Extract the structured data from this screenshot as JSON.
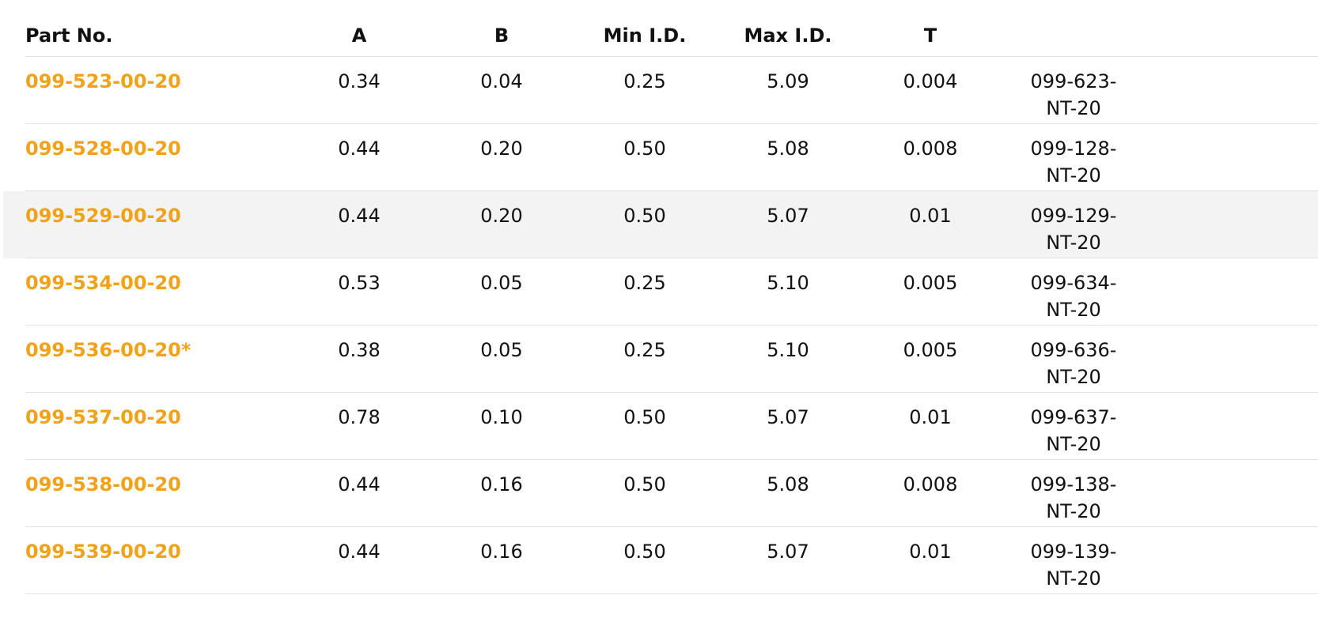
{
  "table": {
    "headers": [
      "Part No.",
      "A",
      "B",
      "Min I.D.",
      "Max I.D.",
      "T",
      ""
    ],
    "link_color": "#f0a31a",
    "highlight_color": "#f3f3f3",
    "rows": [
      {
        "part": "099-523-00-20",
        "a": "0.34",
        "b": "0.04",
        "min_id": "0.25",
        "max_id": "5.09",
        "t": "0.004",
        "ref_line1": "099-623-",
        "ref_line2": "NT-20"
      },
      {
        "part": "099-528-00-20",
        "a": "0.44",
        "b": "0.20",
        "min_id": "0.50",
        "max_id": "5.08",
        "t": "0.008",
        "ref_line1": "099-128-",
        "ref_line2": "NT-20"
      },
      {
        "part": "099-529-00-20",
        "a": "0.44",
        "b": "0.20",
        "min_id": "0.50",
        "max_id": "5.07",
        "t": "0.01",
        "ref_line1": "099-129-",
        "ref_line2": "NT-20",
        "hovered": true
      },
      {
        "part": "099-534-00-20",
        "a": "0.53",
        "b": "0.05",
        "min_id": "0.25",
        "max_id": "5.10",
        "t": "0.005",
        "ref_line1": "099-634-",
        "ref_line2": "NT-20"
      },
      {
        "part": "099-536-00-20*",
        "a": "0.38",
        "b": "0.05",
        "min_id": "0.25",
        "max_id": "5.10",
        "t": "0.005",
        "ref_line1": "099-636-",
        "ref_line2": "NT-20"
      },
      {
        "part": "099-537-00-20",
        "a": "0.78",
        "b": "0.10",
        "min_id": "0.50",
        "max_id": "5.07",
        "t": "0.01",
        "ref_line1": "099-637-",
        "ref_line2": "NT-20"
      },
      {
        "part": "099-538-00-20",
        "a": "0.44",
        "b": "0.16",
        "min_id": "0.50",
        "max_id": "5.08",
        "t": "0.008",
        "ref_line1": "099-138-",
        "ref_line2": "NT-20"
      },
      {
        "part": "099-539-00-20",
        "a": "0.44",
        "b": "0.16",
        "min_id": "0.50",
        "max_id": "5.07",
        "t": "0.01",
        "ref_line1": "099-139-",
        "ref_line2": "NT-20"
      }
    ]
  }
}
